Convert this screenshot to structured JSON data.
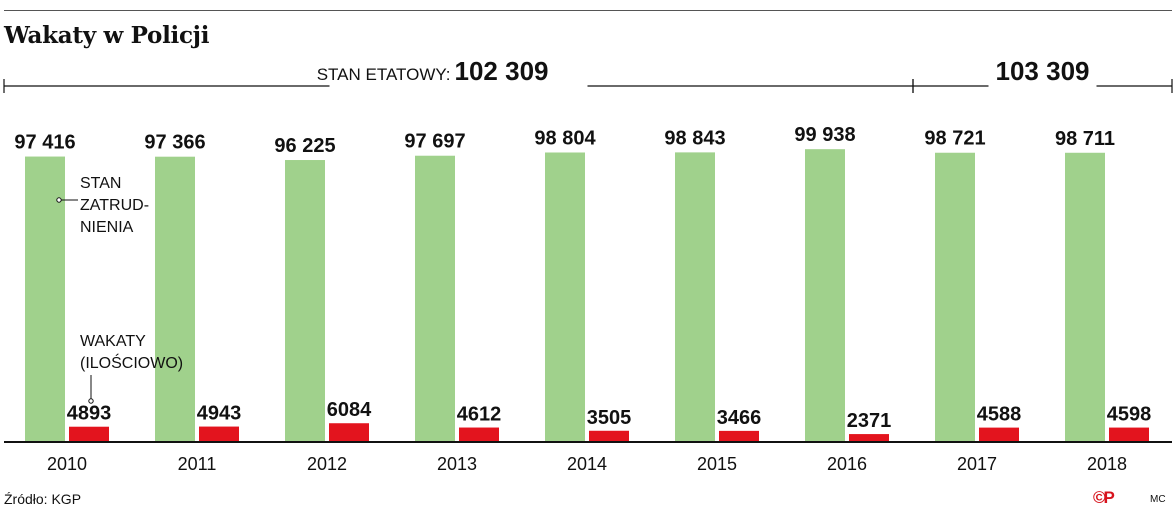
{
  "title": "Wakaty w Policji",
  "source": "Źródło: KGP",
  "credit": "MC",
  "copyright_mark": "©P",
  "colors": {
    "employed": "#a0d18c",
    "vacancies": "#e3141e",
    "axis": "#111111"
  },
  "chart_data": {
    "type": "bar",
    "title": "Wakaty w Policji",
    "categories": [
      "2010",
      "2011",
      "2012",
      "2013",
      "2014",
      "2015",
      "2016",
      "2017",
      "2018"
    ],
    "series": [
      {
        "name": "STAN ZATRUD- NIENIA",
        "values": [
          97416,
          97366,
          96225,
          97697,
          98804,
          98843,
          99938,
          98721,
          98711
        ],
        "labels": [
          "97 416",
          "97 366",
          "96 225",
          "97 697",
          "98 804",
          "98 843",
          "99 938",
          "98 721",
          "98 711"
        ]
      },
      {
        "name": "WAKATY (ILOŚCIOWO)",
        "values": [
          4893,
          4943,
          6084,
          4612,
          3505,
          3466,
          2371,
          4588,
          4598
        ],
        "labels": [
          "4893",
          "4943",
          "6084",
          "4612",
          "3505",
          "3466",
          "2371",
          "4588",
          "4598"
        ]
      }
    ],
    "annotations": {
      "employed_lines": [
        "STAN",
        "ZATRUD-",
        "NIENIA"
      ],
      "vacancies_lines": [
        "WAKATY",
        "(ILOŚCIOWO)"
      ]
    },
    "establishment": [
      {
        "label": "STAN ETATOWY:",
        "value": 102309,
        "value_label": "102 309",
        "from": "2010",
        "to": "2016"
      },
      {
        "label": "",
        "value": 103309,
        "value_label": "103 309",
        "from": "2017",
        "to": "2018"
      }
    ],
    "xlabel": "",
    "ylabel": "",
    "grid": false,
    "legend": "inline annotations"
  }
}
